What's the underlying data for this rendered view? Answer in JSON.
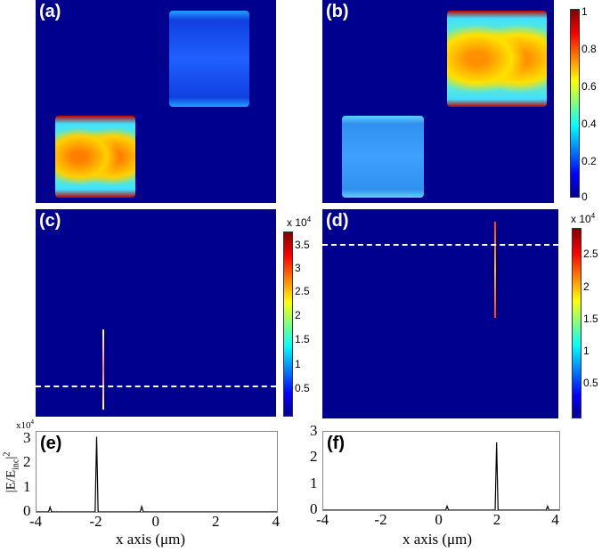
{
  "panels": {
    "a": "(a)",
    "b": "(b)",
    "c": "(c)",
    "d": "(d)",
    "e": "(e)",
    "f": "(f)"
  },
  "colorbar_ab": {
    "ticks": [
      "1",
      "0.8",
      "0.6",
      "0.4",
      "0.2",
      "0"
    ]
  },
  "colorbar_c": {
    "multiplier": "x 10",
    "exp": "4",
    "ticks": [
      "3.5",
      "3",
      "2.5",
      "2",
      "1.5",
      "1",
      "0.5"
    ]
  },
  "colorbar_d": {
    "multiplier": "x 10",
    "exp": "4",
    "ticks": [
      "2.5",
      "2",
      "1.5",
      "1",
      "0.5"
    ]
  },
  "colormap": "jet",
  "chart_data": [
    {
      "type": "line",
      "panel": "(e)",
      "ylabel": "|E/Einc|2",
      "ylabel_main": "|E/E",
      "ylabel_sub": "inc",
      "ylabel_sup": "2",
      "y_multiplier": "x10",
      "y_multiplier_exp": "4",
      "xlabel": "x axis (μm)",
      "xlim": [
        -4,
        4
      ],
      "ylim": [
        0,
        3.3
      ],
      "xticks": [
        "-4",
        "-2",
        "0",
        "2",
        "4"
      ],
      "yticks": [
        "0",
        "1",
        "2",
        "3"
      ],
      "x": [
        -4,
        -3.6,
        -3.55,
        -3.5,
        -2.05,
        -2,
        -1.95,
        -0.55,
        -0.5,
        -0.45,
        4
      ],
      "y": [
        0,
        0,
        0.2,
        0,
        0,
        3.1,
        0,
        0,
        0.22,
        0,
        0
      ]
    },
    {
      "type": "line",
      "panel": "(f)",
      "xlabel": "x axis (μm)",
      "xlim": [
        -4,
        4.1
      ],
      "ylim": [
        0,
        3
      ],
      "xticks": [
        "-4",
        "-2",
        "0",
        "2",
        "4"
      ],
      "yticks": [
        "0",
        "1",
        "2",
        "3"
      ],
      "x": [
        -4,
        0.2,
        0.25,
        0.3,
        1.9,
        1.95,
        2.0,
        3.65,
        3.7,
        3.75,
        4.1
      ],
      "y": [
        0,
        0,
        0.15,
        0,
        0,
        2.6,
        0,
        0,
        0.15,
        0,
        0
      ]
    }
  ]
}
